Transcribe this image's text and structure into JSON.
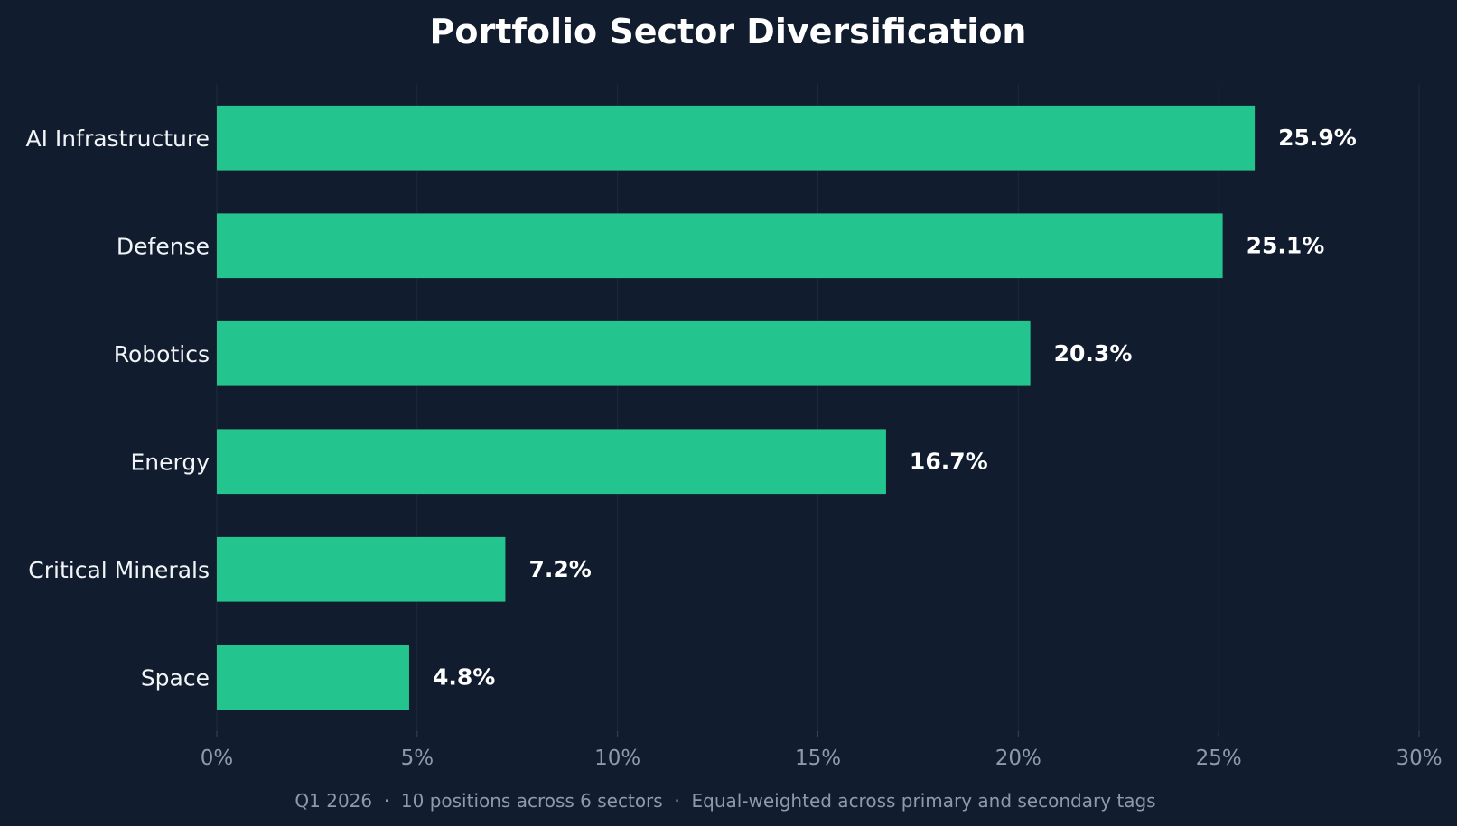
{
  "chart_data": {
    "type": "bar",
    "orientation": "horizontal",
    "title": "Portfolio Sector Diversification",
    "categories": [
      "AI Infrastructure",
      "Defense",
      "Robotics",
      "Energy",
      "Critical Minerals",
      "Space"
    ],
    "values": [
      25.9,
      25.1,
      20.3,
      16.7,
      7.2,
      4.8
    ],
    "value_labels": [
      "25.9%",
      "25.1%",
      "20.3%",
      "16.7%",
      "7.2%",
      "4.8%"
    ],
    "xlim": [
      0,
      30
    ],
    "x_ticks": [
      0,
      5,
      10,
      15,
      20,
      25,
      30
    ],
    "x_tick_labels": [
      "0%",
      "5%",
      "10%",
      "15%",
      "20%",
      "25%",
      "30%"
    ],
    "xlabel": "",
    "ylabel": "",
    "grid": "vertical",
    "legend": "none",
    "footnote": "Q1 2026  ·  10 positions across 6 sectors  ·  Equal-weighted across primary and secondary tags",
    "colors": {
      "background": "#111d2e",
      "bar": "#24c48e",
      "grid": "#1c2a3b",
      "tick_text": "#8e9aaa",
      "text": "#ffffff"
    }
  }
}
